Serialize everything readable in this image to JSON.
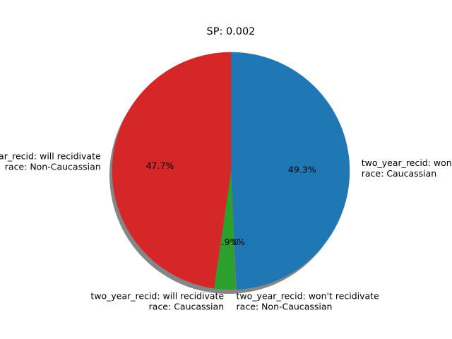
{
  "chart_data": {
    "type": "pie",
    "title": "SP: 0.002",
    "start_angle_deg": 90,
    "direction": "clockwise",
    "shadow": true,
    "slices": [
      {
        "label_line1": "two_year_recid: won't recidivate",
        "label_line2": "race: Caucassian",
        "value": 49.3,
        "pct_label": "49.3%",
        "color": "#1f77b4"
      },
      {
        "label_line1": "two_year_recid: won't recidivate",
        "label_line2": "race: Non-Caucassian",
        "value": 0.1,
        "pct_label": "0.1%",
        "color": "#8c7a5a"
      },
      {
        "label_line1": "two_year_recid: will recidivate",
        "label_line2": "race: Caucassian",
        "value": 2.9,
        "pct_label": "2.9%",
        "color": "#2ca02c"
      },
      {
        "label_line1": "two_year_recid: will recidivate",
        "label_line2": "race: Non-Caucassian",
        "value": 47.7,
        "pct_label": "47.7%",
        "color": "#d62728"
      }
    ]
  }
}
